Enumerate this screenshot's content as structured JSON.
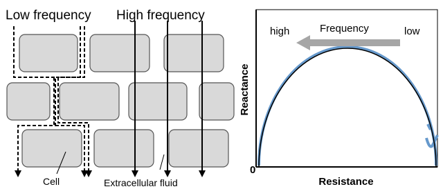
{
  "diagram": {
    "low_frequency_label": "Low frequency",
    "high_frequency_label": "High frequency",
    "cell_label": "Cell",
    "fluid_label": "Extracellular fluid"
  },
  "plot": {
    "high_label": "high",
    "frequency_label": "Frequency",
    "low_label": "low",
    "y_axis_label": "Reactance",
    "x_axis_label": "Resistance",
    "origin_label": "0"
  }
}
